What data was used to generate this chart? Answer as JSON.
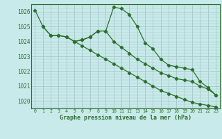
{
  "title": "Graphe pression niveau de la mer (hPa)",
  "background_color": "#c8eaea",
  "grid_color": "#aacccc",
  "line_color": "#2d6e2d",
  "x_labels": [
    "0",
    "1",
    "2",
    "3",
    "4",
    "5",
    "6",
    "7",
    "8",
    "9",
    "10",
    "11",
    "12",
    "13",
    "14",
    "15",
    "16",
    "17",
    "18",
    "19",
    "20",
    "21",
    "22",
    "23"
  ],
  "ylim": [
    1019.5,
    1026.5
  ],
  "yticks": [
    1020,
    1021,
    1022,
    1023,
    1024,
    1025,
    1026
  ],
  "series": [
    {
      "x": [
        0,
        1,
        2,
        3,
        4,
        5,
        6,
        7,
        8,
        9,
        10,
        11,
        12,
        13,
        14,
        15,
        16,
        17,
        18,
        19,
        20,
        21,
        22,
        23
      ],
      "y": [
        1026.1,
        1025.0,
        1024.4,
        1024.4,
        1024.3,
        1024.0,
        1024.1,
        1024.3,
        1024.7,
        1024.7,
        1026.3,
        1026.2,
        1025.8,
        1025.0,
        1023.9,
        1023.5,
        1022.8,
        1022.4,
        1022.3,
        1022.2,
        1022.1,
        1021.3,
        1020.9,
        1020.4
      ]
    },
    {
      "x": [
        1,
        2,
        3,
        4,
        5,
        6,
        7,
        8,
        9,
        10,
        11,
        12,
        13,
        14,
        15,
        16,
        17,
        18,
        19,
        20,
        21,
        22,
        23
      ],
      "y": [
        1025.0,
        1024.4,
        1024.4,
        1024.3,
        1024.0,
        1024.1,
        1024.3,
        1024.7,
        1024.7,
        1024.0,
        1023.6,
        1023.2,
        1022.8,
        1022.5,
        1022.2,
        1021.9,
        1021.7,
        1021.5,
        1021.4,
        1021.3,
        1021.0,
        1020.8,
        1020.4
      ]
    },
    {
      "x": [
        5,
        6,
        7,
        8,
        9,
        10,
        11,
        12,
        13,
        14,
        15,
        16,
        17,
        18,
        19,
        20,
        21,
        22,
        23
      ],
      "y": [
        1024.0,
        1023.7,
        1023.4,
        1023.1,
        1022.8,
        1022.5,
        1022.2,
        1021.9,
        1021.6,
        1021.3,
        1021.0,
        1020.7,
        1020.5,
        1020.3,
        1020.1,
        1019.9,
        1019.8,
        1019.7,
        1019.6
      ]
    }
  ]
}
